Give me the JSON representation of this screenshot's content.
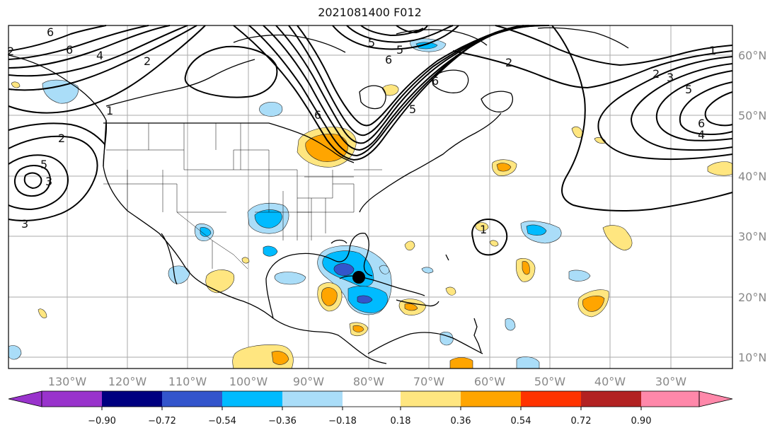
{
  "title": "2021081400 F012",
  "map": {
    "lon_ticks": [
      "130°W",
      "120°W",
      "110°W",
      "100°W",
      "90°W",
      "80°W",
      "70°W",
      "60°W",
      "50°W",
      "40°W",
      "30°W"
    ],
    "lat_ticks": [
      "60°N",
      "50°N",
      "40°N",
      "30°N",
      "20°N",
      "10°N"
    ],
    "contour_labels": [
      "6",
      "6",
      "4",
      "2",
      "2",
      "1",
      "2",
      "5",
      "3",
      "3",
      "6",
      "5",
      "5",
      "6",
      "6",
      "5",
      "2",
      "1",
      "2",
      "3",
      "5",
      "6",
      "4",
      "1"
    ],
    "storm_marker": "storm-center",
    "fill_colors": {
      "neg_090": "#9933cc",
      "neg_072": "#000080",
      "neg_054": "#3355cc",
      "neg_036": "#00bbff",
      "neg_018": "#aaddf8",
      "pos_018": "#ffe680",
      "pos_036": "#ffa500",
      "pos_054": "#ff3300",
      "pos_072": "#b22222",
      "pos_090": "#ff88aa"
    }
  },
  "colorbar": {
    "ticks": [
      "−0.90",
      "−0.72",
      "−0.54",
      "−0.36",
      "−0.18",
      "0.18",
      "0.36",
      "0.54",
      "0.72",
      "0.90"
    ],
    "colors": [
      "#9933cc",
      "#000080",
      "#3355cc",
      "#00bbff",
      "#aaddf8",
      "#ffffff",
      "#ffe680",
      "#ffa500",
      "#ff3300",
      "#b22222",
      "#ff88aa",
      "#ff88aa"
    ]
  }
}
